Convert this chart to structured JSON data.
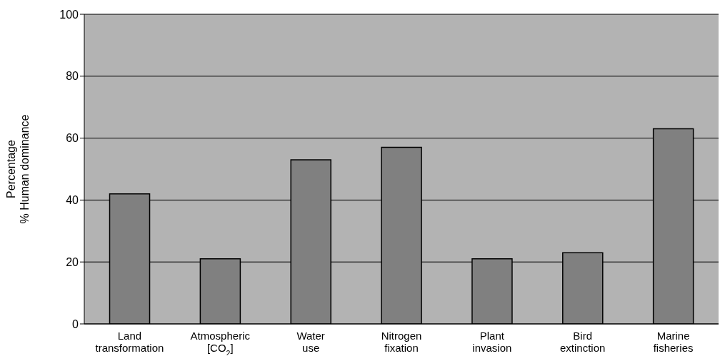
{
  "chart_data": {
    "type": "bar",
    "ylabel": "Percentage\n% Human dominance",
    "categories": [
      "Land\ntransformation",
      "Atmospheric\n[CO$_{2}$]",
      "Water\nuse",
      "Nitrogen\nfixation",
      "Plant\ninvasion",
      "Bird\nextinction",
      "Marine\nfisheries"
    ],
    "values": [
      42,
      21,
      53,
      57,
      21,
      23,
      63
    ],
    "color": "#808080",
    "ylim": [
      0,
      100
    ],
    "yticks": [
      0,
      20,
      40,
      60,
      80,
      100
    ],
    "grid": "y"
  }
}
